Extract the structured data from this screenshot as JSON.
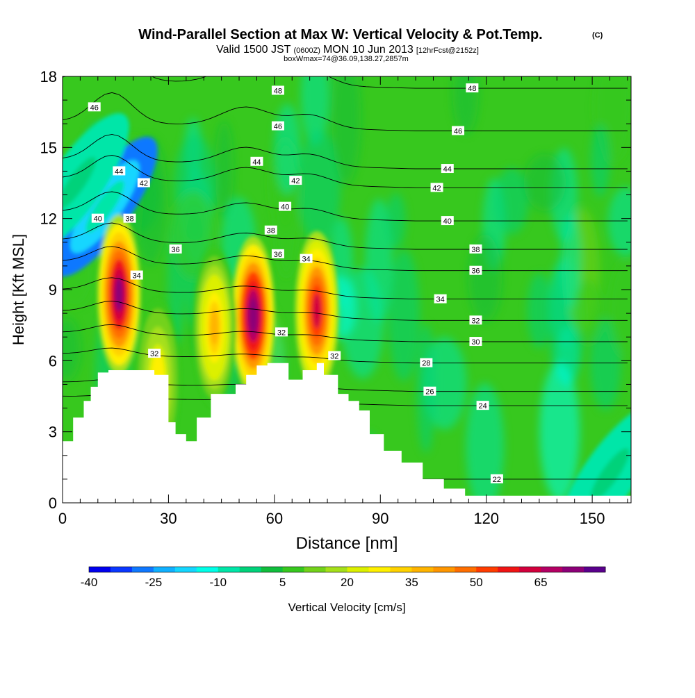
{
  "header": {
    "title": "Wind-Parallel Section at Max W: Vertical Velocity & Pot.Temp.",
    "copyright": "(C)",
    "valid_prefix": "Valid 1500 JST",
    "valid_zulu": "(0600Z)",
    "valid_date": "MON 10 Jun 2013",
    "forecast": "[12hrFcst@2152z]",
    "subline": "boxWmax=74@36.09,138.27,2857m"
  },
  "chart_data": {
    "type": "heatmap",
    "title": "Wind-Parallel Section at Max W: Vertical Velocity & Pot.Temp.",
    "xlabel": "Distance [nm]",
    "ylabel": "Height [Kft MSL]",
    "xlim": [
      0,
      161
    ],
    "ylim": [
      0,
      18
    ],
    "x_ticks": [
      0,
      30,
      60,
      90,
      120,
      150
    ],
    "y_ticks": [
      0,
      3,
      6,
      9,
      12,
      15,
      18
    ],
    "colorbar": {
      "label": "Vertical Velocity [cm/s]",
      "tick_labels": [
        "-40",
        "-25",
        "-10",
        "5",
        "20",
        "35",
        "50",
        "65"
      ],
      "tick_values": [
        -40,
        -25,
        -10,
        5,
        20,
        35,
        50,
        65
      ],
      "levels": [
        -40,
        -35,
        -30,
        -25,
        -20,
        -15,
        -10,
        -5,
        0,
        5,
        10,
        15,
        20,
        25,
        30,
        35,
        40,
        45,
        50,
        55,
        60,
        65,
        70,
        75
      ],
      "colors": [
        "#0000ee",
        "#0a37ff",
        "#0f78ff",
        "#10b0ff",
        "#14d6ff",
        "#00ffe8",
        "#00e6a8",
        "#00d27a",
        "#10be3c",
        "#37c81e",
        "#73d21a",
        "#a5e01a",
        "#dcf000",
        "#fff000",
        "#ffd200",
        "#ffb400",
        "#ff9600",
        "#ff6e00",
        "#ff3c00",
        "#f01414",
        "#d2003c",
        "#b40064",
        "#8c0078",
        "#5a008c"
      ]
    },
    "terrain_profile": {
      "x": [
        0,
        3,
        3,
        6,
        6,
        8,
        8,
        10,
        10,
        13,
        13,
        17,
        17,
        26,
        26,
        30,
        30,
        32,
        32,
        35,
        35,
        38,
        38,
        42,
        42,
        49,
        49,
        52,
        52,
        55,
        55,
        58,
        58,
        64,
        64,
        68,
        68,
        72,
        72,
        74,
        74,
        78,
        78,
        81,
        81,
        84,
        84,
        87,
        87,
        91,
        91,
        96,
        96,
        99,
        99,
        102,
        102,
        108,
        108,
        114,
        114,
        118,
        118,
        122,
        122,
        161
      ],
      "y": [
        2.6,
        2.6,
        3.6,
        3.6,
        4.3,
        4.3,
        4.9,
        4.9,
        5.5,
        5.5,
        5.6,
        5.6,
        5.6,
        5.6,
        5.4,
        5.4,
        3.4,
        3.4,
        2.9,
        2.9,
        2.6,
        2.6,
        3.6,
        3.6,
        4.6,
        4.6,
        5.0,
        5.0,
        5.4,
        5.4,
        5.8,
        5.8,
        5.9,
        5.9,
        5.2,
        5.2,
        5.6,
        5.6,
        5.9,
        5.9,
        5.4,
        5.4,
        4.6,
        4.6,
        4.3,
        4.3,
        3.9,
        3.9,
        2.9,
        2.9,
        2.2,
        2.2,
        1.7,
        1.7,
        1.7,
        1.7,
        1.0,
        1.0,
        0.6,
        0.6,
        0.3,
        0.3,
        0.3,
        0.3,
        0.3,
        0.3
      ]
    },
    "updraft_cells": [
      {
        "x": 16,
        "y": 8.8,
        "w_max": 72
      },
      {
        "x": 54,
        "y": 7.9,
        "w_max": 74
      },
      {
        "x": 72,
        "y": 8.1,
        "w_max": 60
      },
      {
        "x": 43,
        "y": 7.4,
        "w_max": 35
      },
      {
        "x": 27,
        "y": 5.2,
        "w_max": 28
      }
    ],
    "downdraft_cells": [
      {
        "x": 12,
        "y": 12.5,
        "w_min": -30
      },
      {
        "x": 4,
        "y": 13.5,
        "w_min": -10
      },
      {
        "x": 155,
        "y": 1.2,
        "w_min": -10
      }
    ],
    "theta_contours": [
      {
        "value": 22,
        "label": "22",
        "label_at": [
          123,
          1.0
        ]
      },
      {
        "value": 24,
        "label": "24",
        "label_at": [
          119,
          4.1
        ]
      },
      {
        "value": 26,
        "label": "26",
        "label_at": [
          104,
          4.7
        ]
      },
      {
        "value": 28,
        "label": "28",
        "label_at": [
          103,
          5.9
        ]
      },
      {
        "value": 30,
        "label": "30",
        "label_at": [
          117,
          6.8
        ]
      },
      {
        "value": 32,
        "label": "32",
        "label_at": [
          117,
          7.7
        ]
      },
      {
        "value": 34,
        "label": "34",
        "label_at": [
          107,
          8.6
        ]
      },
      {
        "value": 36,
        "label": "36",
        "label_at": [
          117,
          9.8
        ]
      },
      {
        "value": 38,
        "label": "38",
        "label_at": [
          117,
          10.7
        ]
      },
      {
        "value": 40,
        "label": "40",
        "label_at": [
          109,
          11.9
        ]
      },
      {
        "value": 42,
        "label": "42",
        "label_at": [
          106,
          13.3
        ]
      },
      {
        "value": 44,
        "label": "44",
        "label_at": [
          109,
          14.1
        ]
      },
      {
        "value": 46,
        "label": "46",
        "label_at": [
          112,
          15.7
        ]
      },
      {
        "value": 48,
        "label": "48",
        "label_at": [
          116,
          17.5
        ]
      }
    ],
    "theta_extra_labels": [
      {
        "label": "46",
        "at": [
          9,
          16.7
        ]
      },
      {
        "label": "44",
        "at": [
          16,
          14.0
        ]
      },
      {
        "label": "42",
        "at": [
          23,
          13.5
        ]
      },
      {
        "label": "40",
        "at": [
          10,
          12.0
        ]
      },
      {
        "label": "38",
        "at": [
          19,
          12.0
        ]
      },
      {
        "label": "36",
        "at": [
          32,
          10.7
        ]
      },
      {
        "label": "34",
        "at": [
          21,
          9.6
        ]
      },
      {
        "label": "32",
        "at": [
          26,
          6.3
        ]
      },
      {
        "label": "48",
        "at": [
          61,
          17.4
        ]
      },
      {
        "label": "46",
        "at": [
          61,
          15.9
        ]
      },
      {
        "label": "44",
        "at": [
          55,
          14.4
        ]
      },
      {
        "label": "42",
        "at": [
          66,
          13.6
        ]
      },
      {
        "label": "40",
        "at": [
          63,
          12.5
        ]
      },
      {
        "label": "38",
        "at": [
          59,
          11.5
        ]
      },
      {
        "label": "36",
        "at": [
          61,
          10.5
        ]
      },
      {
        "label": "34",
        "at": [
          69,
          10.3
        ]
      },
      {
        "label": "32",
        "at": [
          62,
          7.2
        ]
      },
      {
        "label": "32",
        "at": [
          77,
          6.2
        ]
      }
    ]
  }
}
